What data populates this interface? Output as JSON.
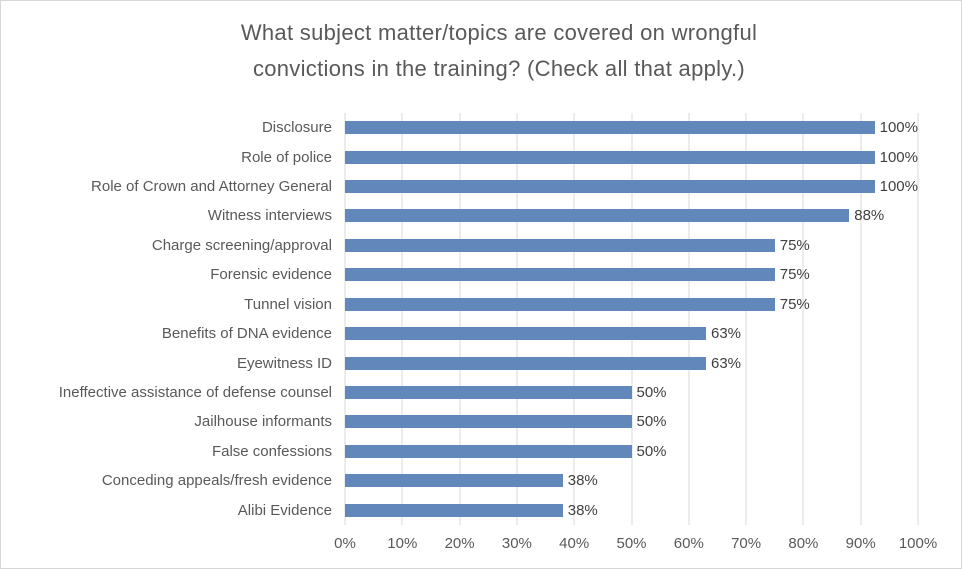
{
  "chart_data": {
    "type": "bar",
    "orientation": "horizontal",
    "title": "What subject matter/topics are covered on wrongful convictions in the training? (Check all that apply.)",
    "title_lines": [
      "What subject matter/topics are covered on wrongful",
      "convictions in the training? (Check all that apply.)"
    ],
    "categories": [
      "Disclosure",
      "Role of police",
      "Role of Crown and Attorney General",
      "Witness interviews",
      "Charge screening/approval",
      "Forensic evidence",
      "Tunnel vision",
      "Benefits of DNA evidence",
      "Eyewitness ID",
      "Ineffective assistance of defense counsel",
      "Jailhouse informants",
      "False confessions",
      "Conceding appeals/fresh evidence",
      "Alibi Evidence"
    ],
    "values": [
      100,
      100,
      100,
      88,
      75,
      75,
      75,
      63,
      63,
      50,
      50,
      50,
      38,
      38
    ],
    "data_labels": [
      "100%",
      "100%",
      "100%",
      "88%",
      "75%",
      "75%",
      "75%",
      "63%",
      "63%",
      "50%",
      "50%",
      "50%",
      "38%",
      "38%"
    ],
    "x_ticks": [
      "0%",
      "10%",
      "20%",
      "30%",
      "40%",
      "50%",
      "60%",
      "70%",
      "80%",
      "90%",
      "100%"
    ],
    "xlim": [
      0,
      100
    ],
    "grid": "vertical",
    "legend": "none",
    "colors": {
      "bar": "#6287BB",
      "gridline": "#D9D9D9",
      "title_text": "#595959",
      "axis_text": "#595959",
      "data_label_text": "#404040",
      "border": "#D7D7D7",
      "background": "#FFFFFF"
    }
  }
}
